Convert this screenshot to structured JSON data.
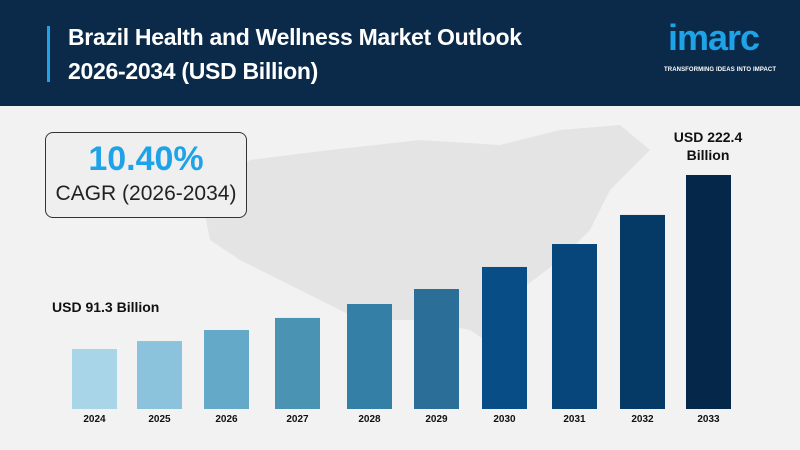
{
  "header": {
    "title_line1": "Brazil Health and Wellness Market Outlook",
    "title_line2": "2026-2034 (USD Billion)",
    "logo": "imarc",
    "tagline": "TRANSFORMING IDEAS INTO IMPACT"
  },
  "cagr": {
    "value": "10.40%",
    "label": "CAGR (2026-2034)"
  },
  "chart_data": {
    "type": "bar",
    "title": "Brazil Health and Wellness Market Outlook 2026-2034 (USD Billion)",
    "categories": [
      "2024",
      "2025",
      "2026",
      "2027",
      "2028",
      "2029",
      "2030",
      "2031",
      "2032",
      "2033"
    ],
    "values": [
      91.3,
      97.3,
      105.6,
      114.7,
      125.2,
      136.5,
      153.1,
      170.4,
      192.3,
      222.4
    ],
    "annotations": {
      "first": "USD 91.3 Billion",
      "last_line1": "USD 222.4",
      "last_line2": "Billion"
    },
    "colors": [
      "#a8d5e8",
      "#8cc3dc",
      "#65a9c8",
      "#4a93b3",
      "#337fa5",
      "#2b6e98",
      "#084d86",
      "#07467a",
      "#053a66",
      "#05284a"
    ],
    "grid": false,
    "legend": "none"
  }
}
